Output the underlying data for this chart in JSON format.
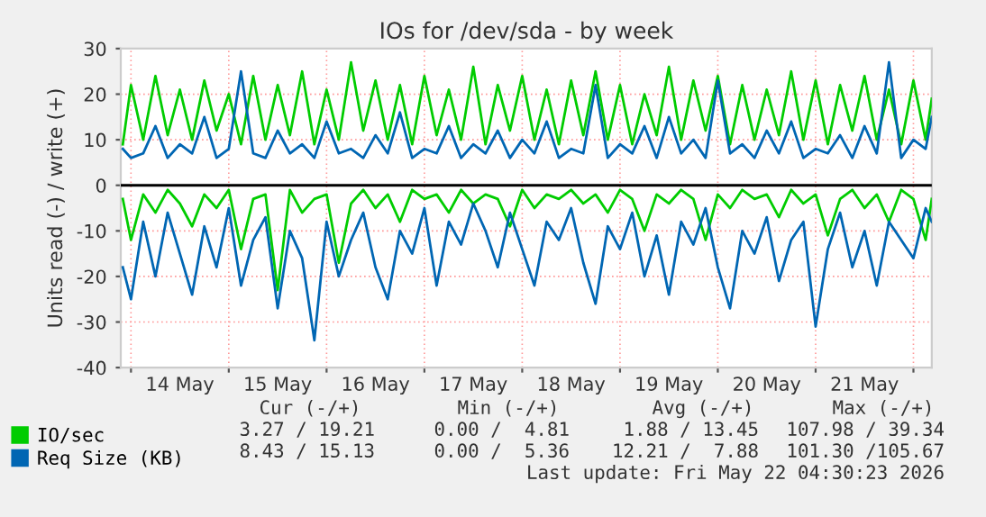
{
  "chart_data": {
    "type": "line",
    "title": "IOs for /dev/sda - by week",
    "ylabel": "Units read (-) / write (+)",
    "x": [
      "2026-05-13T22:00",
      "2026-05-14T00:00",
      "2026-05-14T03:00",
      "2026-05-14T06:00",
      "2026-05-14T09:00",
      "2026-05-14T12:00",
      "2026-05-14T15:00",
      "2026-05-14T18:00",
      "2026-05-14T21:00",
      "2026-05-15T00:00",
      "2026-05-15T03:00",
      "2026-05-15T06:00",
      "2026-05-15T09:00",
      "2026-05-15T12:00",
      "2026-05-15T15:00",
      "2026-05-15T18:00",
      "2026-05-15T21:00",
      "2026-05-16T00:00",
      "2026-05-16T03:00",
      "2026-05-16T06:00",
      "2026-05-16T09:00",
      "2026-05-16T12:00",
      "2026-05-16T15:00",
      "2026-05-16T18:00",
      "2026-05-16T21:00",
      "2026-05-17T00:00",
      "2026-05-17T03:00",
      "2026-05-17T06:00",
      "2026-05-17T09:00",
      "2026-05-17T12:00",
      "2026-05-17T15:00",
      "2026-05-17T18:00",
      "2026-05-17T21:00",
      "2026-05-18T00:00",
      "2026-05-18T03:00",
      "2026-05-18T06:00",
      "2026-05-18T09:00",
      "2026-05-18T12:00",
      "2026-05-18T15:00",
      "2026-05-18T18:00",
      "2026-05-18T21:00",
      "2026-05-19T00:00",
      "2026-05-19T03:00",
      "2026-05-19T06:00",
      "2026-05-19T09:00",
      "2026-05-19T12:00",
      "2026-05-19T15:00",
      "2026-05-19T18:00",
      "2026-05-19T21:00",
      "2026-05-20T00:00",
      "2026-05-20T03:00",
      "2026-05-20T06:00",
      "2026-05-20T09:00",
      "2026-05-20T12:00",
      "2026-05-20T15:00",
      "2026-05-20T18:00",
      "2026-05-20T21:00",
      "2026-05-21T00:00",
      "2026-05-21T03:00",
      "2026-05-21T06:00",
      "2026-05-21T09:00",
      "2026-05-21T12:00",
      "2026-05-21T15:00",
      "2026-05-21T18:00",
      "2026-05-21T21:00",
      "2026-05-22T00:00",
      "2026-05-22T03:00",
      "2026-05-22T04:30"
    ],
    "series": [
      {
        "name": "IO/sec",
        "color": "#00cc00",
        "values": [
          9,
          22,
          10,
          24,
          11,
          21,
          10,
          23,
          12,
          20,
          9,
          24,
          10,
          22,
          11,
          25,
          9,
          21,
          10,
          27,
          12,
          23,
          10,
          22,
          9,
          24,
          11,
          21,
          10,
          26,
          9,
          22,
          12,
          24,
          10,
          21,
          9,
          23,
          11,
          25,
          10,
          22,
          9,
          20,
          11,
          26,
          10,
          23,
          12,
          24,
          9,
          22,
          10,
          21,
          11,
          25,
          10,
          23,
          9,
          22,
          12,
          24,
          10,
          21,
          9,
          23,
          10,
          19
        ]
      },
      {
        "color": "#00cc00",
        "values": [
          -3,
          -12,
          -2,
          -6,
          -1,
          -4,
          -9,
          -2,
          -5,
          -1,
          -14,
          -3,
          -2,
          -23,
          -1,
          -6,
          -3,
          -2,
          -17,
          -4,
          -1,
          -5,
          -2,
          -8,
          -1,
          -3,
          -2,
          -6,
          -1,
          -4,
          -2,
          -3,
          -9,
          -1,
          -5,
          -2,
          -3,
          -1,
          -4,
          -2,
          -6,
          -1,
          -3,
          -10,
          -2,
          -4,
          -1,
          -3,
          -12,
          -2,
          -5,
          -1,
          -3,
          -2,
          -7,
          -1,
          -4,
          -2,
          -11,
          -3,
          -1,
          -5,
          -2,
          -8,
          -1,
          -3,
          -12,
          -3
        ]
      },
      {
        "name": "Req Size (KB)",
        "color": "#0066b3",
        "values": [
          8,
          6,
          7,
          13,
          6,
          9,
          7,
          15,
          6,
          8,
          25,
          7,
          6,
          12,
          7,
          9,
          6,
          14,
          7,
          8,
          6,
          11,
          7,
          16,
          6,
          8,
          7,
          13,
          6,
          9,
          7,
          12,
          6,
          10,
          7,
          14,
          6,
          8,
          7,
          22,
          6,
          9,
          7,
          13,
          6,
          15,
          7,
          10,
          6,
          23,
          7,
          9,
          6,
          12,
          7,
          14,
          6,
          8,
          7,
          11,
          6,
          13,
          7,
          27,
          6,
          10,
          8,
          15
        ]
      },
      {
        "color": "#0066b3",
        "values": [
          -18,
          -25,
          -8,
          -20,
          -6,
          -15,
          -24,
          -9,
          -18,
          -5,
          -22,
          -12,
          -7,
          -27,
          -10,
          -16,
          -34,
          -8,
          -20,
          -12,
          -6,
          -18,
          -25,
          -10,
          -15,
          -5,
          -22,
          -8,
          -13,
          -4,
          -10,
          -18,
          -6,
          -14,
          -22,
          -8,
          -12,
          -5,
          -17,
          -26,
          -9,
          -14,
          -6,
          -20,
          -11,
          -24,
          -8,
          -13,
          -5,
          -18,
          -27,
          -10,
          -15,
          -7,
          -21,
          -12,
          -8,
          -31,
          -14,
          -6,
          -18,
          -10,
          -22,
          -8,
          -12,
          -16,
          -5,
          -8
        ]
      }
    ],
    "xlim": [
      "2026-05-13T21:30",
      "2026-05-22T04:30"
    ],
    "xticks": [
      {
        "value": "2026-05-14T00:00",
        "label": null
      },
      {
        "value": "2026-05-14T12:00",
        "label": "14 May"
      },
      {
        "value": "2026-05-15T00:00",
        "label": null
      },
      {
        "value": "2026-05-15T12:00",
        "label": "15 May"
      },
      {
        "value": "2026-05-16T00:00",
        "label": null
      },
      {
        "value": "2026-05-16T12:00",
        "label": "16 May"
      },
      {
        "value": "2026-05-17T00:00",
        "label": null
      },
      {
        "value": "2026-05-17T12:00",
        "label": "17 May"
      },
      {
        "value": "2026-05-18T00:00",
        "label": null
      },
      {
        "value": "2026-05-18T12:00",
        "label": "18 May"
      },
      {
        "value": "2026-05-19T00:00",
        "label": null
      },
      {
        "value": "2026-05-19T12:00",
        "label": "19 May"
      },
      {
        "value": "2026-05-20T00:00",
        "label": null
      },
      {
        "value": "2026-05-20T12:00",
        "label": "20 May"
      },
      {
        "value": "2026-05-21T00:00",
        "label": null
      },
      {
        "value": "2026-05-21T12:00",
        "label": "21 May"
      },
      {
        "value": "2026-05-22T00:00",
        "label": null
      }
    ],
    "ylim": [
      -40,
      30
    ],
    "yticks": [
      -40,
      -30,
      -20,
      -10,
      0,
      10,
      20,
      30
    ],
    "ref_lines": [
      {
        "axis": "y",
        "value": 0,
        "color": "#000000"
      }
    ],
    "grid": true,
    "legend": "bottom",
    "marker": "none",
    "line_style": "solid",
    "annotations": [
      "Cur (-/+)",
      "Min (-/+)",
      "Avg (-/+)",
      "Max (-/+)",
      "3.27 / 19.21",
      "0.00 /  4.81",
      "1.88 / 13.45",
      "107.98 / 39.34",
      "8.43 / 15.13",
      "0.00 /  5.36",
      "12.21 /  7.88",
      "101.30 /105.67",
      "Last update: Fri May 22 04:30:23 2026"
    ]
  }
}
